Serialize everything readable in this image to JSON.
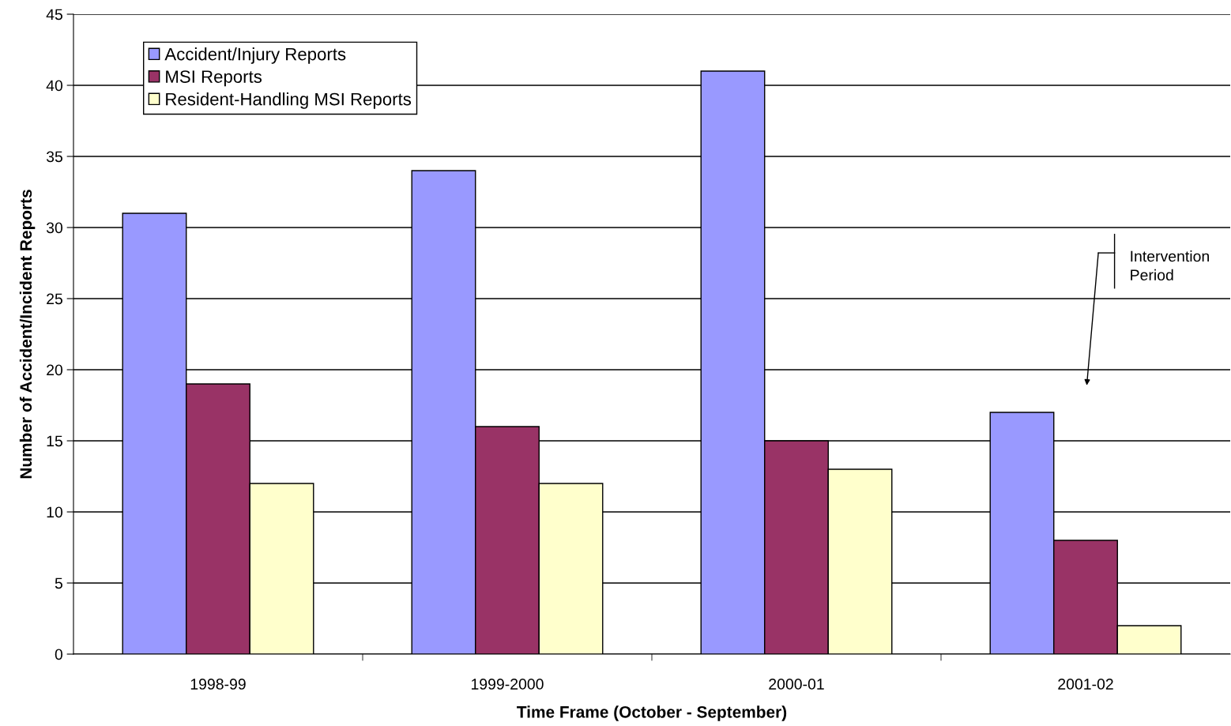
{
  "chart_data": {
    "type": "bar",
    "xlabel": "Time Frame (October - September)",
    "ylabel": "Number of Accident/Incident Reports",
    "categories": [
      "1998-99",
      "1999-2000",
      "2000-01",
      "2001-02"
    ],
    "series": [
      {
        "name": "Accident/Injury Reports",
        "color": "#9999ff",
        "values": [
          31,
          34,
          41,
          17
        ]
      },
      {
        "name": "MSI Reports",
        "color": "#993366",
        "values": [
          19,
          16,
          15,
          8
        ]
      },
      {
        "name": "Resident-Handling MSI Reports",
        "color": "#ffffcc",
        "values": [
          12,
          12,
          13,
          2
        ]
      }
    ],
    "ylim": [
      0,
      45
    ],
    "yticks": [
      0,
      5,
      10,
      15,
      20,
      25,
      30,
      35,
      40,
      45
    ],
    "grid": "y",
    "legend": "top left",
    "annotations": [
      "Intervention\nPeriod"
    ]
  }
}
